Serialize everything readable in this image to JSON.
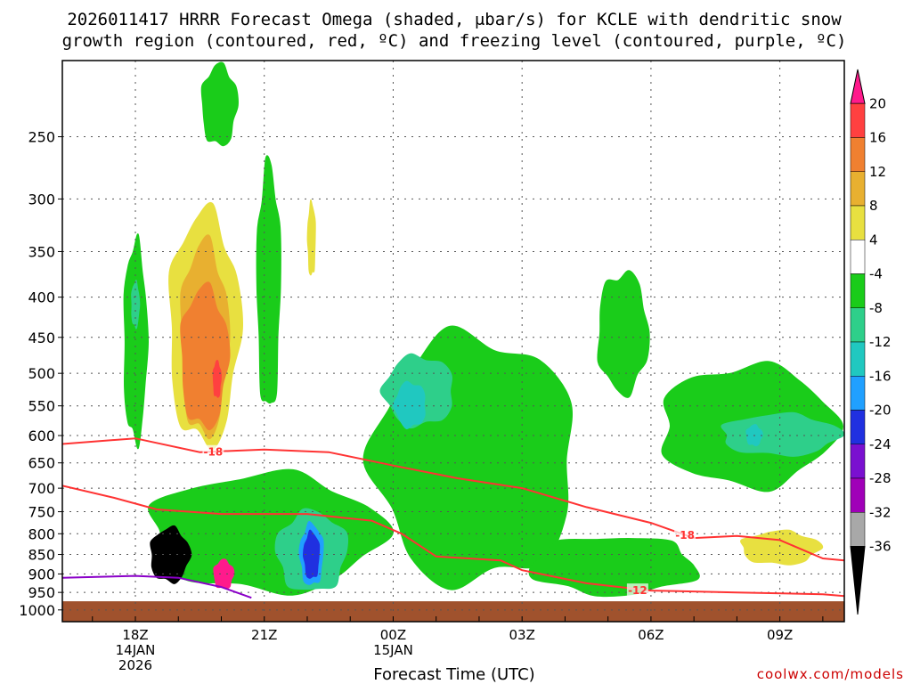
{
  "title": {
    "line1": "2026011417 HRRR Forecast Omega (shaded, μbar/s) for KCLE with dendritic snow",
    "line2": "growth region (contoured, red, ºC) and freezing level (contoured, purple, ºC)"
  },
  "credit": "coolwx.com/models",
  "chart_data": {
    "type": "heatmap",
    "title": "2026011417 HRRR Forecast Omega (shaded, μbar/s) for KCLE with dendritic snow growth region (contoured, red, ºC) and freezing level (contoured, purple, ºC)",
    "xlabel": "Forecast Time (UTC)",
    "ylabel": "",
    "x_range_hours": [
      16.3,
      34.5
    ],
    "y_axis": "pressure (mb), log scale, inverted",
    "ylim": [
      1035,
      200
    ],
    "y_ticks": [
      250,
      300,
      350,
      400,
      450,
      500,
      550,
      600,
      650,
      700,
      750,
      800,
      850,
      900,
      950,
      1000
    ],
    "x_ticks": [
      {
        "hour": 18,
        "label": "18Z",
        "sub1": "14JAN",
        "sub2": "2026"
      },
      {
        "hour": 21,
        "label": "21Z",
        "sub1": "",
        "sub2": ""
      },
      {
        "hour": 24,
        "label": "00Z",
        "sub1": "15JAN",
        "sub2": ""
      },
      {
        "hour": 27,
        "label": "03Z",
        "sub1": "",
        "sub2": ""
      },
      {
        "hour": 30,
        "label": "06Z",
        "sub1": "",
        "sub2": ""
      },
      {
        "hour": 33,
        "label": "09Z",
        "sub1": "",
        "sub2": ""
      }
    ],
    "grid": true,
    "ground_below_mb": 975,
    "colorbar": {
      "units": "μbar/s",
      "labels": [
        "20",
        "16",
        "12",
        "8",
        "4",
        "-4",
        "-8",
        "-12",
        "-16",
        "-20",
        "-24",
        "-28",
        "-32",
        "-36"
      ],
      "colors": [
        "#ff1a8c",
        "#ff4040",
        "#f08030",
        "#e8b030",
        "#e8e040",
        "#ffffff",
        "#1acc1a",
        "#2ecf8a",
        "#20c8c0",
        "#20a0ff",
        "#2030e0",
        "#7a10d0",
        "#a000b8",
        "#a8a8a8",
        "#000000"
      ]
    },
    "omega_regions": [
      {
        "name": "green column 19Z",
        "value_class": "-8 to -4",
        "color": "#1acc1a",
        "t0": 17.7,
        "t1": 18.3,
        "p_top": 330,
        "p_bot": 630
      },
      {
        "name": "teal spot 19Z",
        "value_class": "-12 to -8",
        "color": "#2ecf8a",
        "t0": 17.9,
        "t1": 18.1,
        "p_top": 380,
        "p_bot": 440
      },
      {
        "name": "upper green 20Z",
        "value_class": "-8 to -4",
        "color": "#1acc1a",
        "t0": 19.5,
        "t1": 20.4,
        "p_top": 200,
        "p_bot": 260
      },
      {
        "name": "yellow column 19-20Z",
        "value_class": "4 to 8",
        "color": "#e8e040",
        "t0": 18.7,
        "t1": 20.5,
        "p_top": 300,
        "p_bot": 640
      },
      {
        "name": "gold column",
        "value_class": "8 to 12",
        "color": "#e8b030",
        "t0": 19.0,
        "t1": 20.2,
        "p_top": 330,
        "p_bot": 620
      },
      {
        "name": "orange column",
        "value_class": "12 to 16",
        "color": "#f08030",
        "t0": 19.0,
        "t1": 20.2,
        "p_top": 380,
        "p_bot": 600
      },
      {
        "name": "red spot",
        "value_class": "16 to 20",
        "color": "#ff4040",
        "t0": 19.8,
        "t1": 20.0,
        "p_top": 480,
        "p_bot": 540
      },
      {
        "name": "green column 21Z",
        "value_class": "-8 to -4",
        "color": "#1acc1a",
        "t0": 20.8,
        "t1": 21.4,
        "p_top": 260,
        "p_bot": 580
      },
      {
        "name": "yellow sliver 22Z",
        "value_class": "4 to 8",
        "color": "#e8e040",
        "t0": 22.0,
        "t1": 22.2,
        "p_top": 300,
        "p_bot": 380
      },
      {
        "name": "low-level green",
        "value_class": "-8 to -4",
        "color": "#1acc1a",
        "t0": 18.0,
        "t1": 24.0,
        "p_top": 660,
        "p_bot": 965
      },
      {
        "name": "low-level teal 22Z",
        "value_class": "-12 to -8",
        "color": "#2ecf8a",
        "t0": 21.2,
        "t1": 23.0,
        "p_top": 740,
        "p_bot": 960
      },
      {
        "name": "blue core 22Z",
        "value_class": "-20 to -16",
        "color": "#20a0ff",
        "t0": 21.8,
        "t1": 22.4,
        "p_top": 770,
        "p_bot": 940
      },
      {
        "name": "deep blue core 22Z",
        "value_class": "-24 to -20",
        "color": "#2030e0",
        "t0": 21.9,
        "t1": 22.3,
        "p_top": 790,
        "p_bot": 920
      },
      {
        "name": "black core 19Z",
        "value_class": "< -36",
        "color": "#000000",
        "t0": 18.3,
        "t1": 19.3,
        "p_top": 780,
        "p_bot": 930
      },
      {
        "name": "magenta cell 20Z",
        "value_class": "> 20",
        "color": "#ff1a8c",
        "t0": 19.8,
        "t1": 20.3,
        "p_top": 860,
        "p_bot": 945
      },
      {
        "name": "green area 00-05Z",
        "value_class": "-8 to -4",
        "color": "#1acc1a",
        "t0": 23.3,
        "t1": 28.5,
        "p_top": 430,
        "p_bot": 965
      },
      {
        "name": "teal blob 01Z",
        "value_class": "-12 to -8",
        "color": "#2ecf8a",
        "t0": 23.7,
        "t1": 25.5,
        "p_top": 470,
        "p_bot": 590
      },
      {
        "name": "cyan blob 01Z",
        "value_class": "-16 to -12",
        "color": "#20c8c0",
        "t0": 24.0,
        "t1": 24.8,
        "p_top": 510,
        "p_bot": 590
      },
      {
        "name": "green plume 05Z",
        "value_class": "-8 to -4",
        "color": "#1acc1a",
        "t0": 28.7,
        "t1": 30.0,
        "p_top": 365,
        "p_bot": 540
      },
      {
        "name": "green band 07-10Z",
        "value_class": "-8 to -4",
        "color": "#1acc1a",
        "t0": 30.0,
        "t1": 34.5,
        "p_top": 480,
        "p_bot": 710
      },
      {
        "name": "teal band 08-10Z",
        "value_class": "-12 to -8",
        "color": "#2ecf8a",
        "t0": 31.5,
        "t1": 34.5,
        "p_top": 560,
        "p_bot": 640
      },
      {
        "name": "cyan spot 08Z",
        "value_class": "-16 to -12",
        "color": "#20c8c0",
        "t0": 32.2,
        "t1": 32.6,
        "p_top": 580,
        "p_bot": 620
      },
      {
        "name": "green low band 03-07Z",
        "value_class": "-8 to -4",
        "color": "#1acc1a",
        "t0": 27.0,
        "t1": 31.3,
        "p_top": 800,
        "p_bot": 965
      },
      {
        "name": "yellow spots 08-10Z",
        "value_class": "4 to 8",
        "color": "#e8e040",
        "t0": 32.0,
        "t1": 34.0,
        "p_top": 790,
        "p_bot": 880
      }
    ],
    "dgz_contours_red": [
      {
        "label": "-18",
        "points": [
          [
            16.3,
            615
          ],
          [
            18.0,
            605
          ],
          [
            19.5,
            630
          ],
          [
            21.0,
            625
          ],
          [
            22.5,
            630
          ],
          [
            24.0,
            655
          ],
          [
            25.5,
            680
          ],
          [
            27.0,
            700
          ],
          [
            28.5,
            740
          ],
          [
            30.0,
            775
          ],
          [
            31.0,
            810
          ],
          [
            32.0,
            805
          ],
          [
            33.0,
            815
          ],
          [
            34.0,
            860
          ],
          [
            34.5,
            865
          ]
        ]
      },
      {
        "label": "-12",
        "points": [
          [
            16.3,
            695
          ],
          [
            17.5,
            720
          ],
          [
            18.5,
            745
          ],
          [
            20.0,
            755
          ],
          [
            22.0,
            755
          ],
          [
            23.5,
            770
          ],
          [
            24.2,
            800
          ],
          [
            25.0,
            855
          ],
          [
            26.5,
            865
          ],
          [
            27.0,
            890
          ],
          [
            28.5,
            925
          ],
          [
            30.0,
            945
          ],
          [
            32.0,
            950
          ],
          [
            34.0,
            955
          ],
          [
            34.5,
            960
          ]
        ]
      }
    ],
    "freezing_level_contour_purple": {
      "label": "0",
      "points": [
        [
          16.3,
          910
        ],
        [
          18.0,
          905
        ],
        [
          19.0,
          910
        ],
        [
          20.0,
          935
        ],
        [
          20.7,
          965
        ]
      ]
    }
  }
}
